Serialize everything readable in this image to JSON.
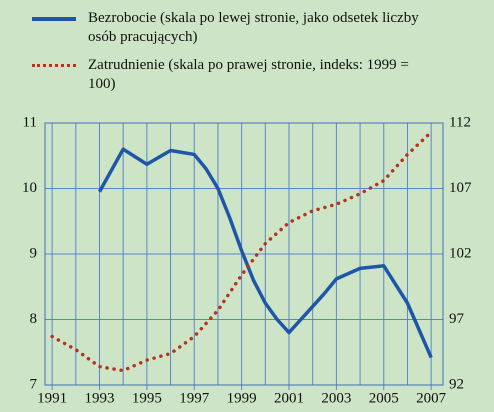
{
  "chart_data": {
    "type": "line",
    "series": [
      {
        "name": "Bezrobocie (skala po lewej stronie, jako odsetek liczby osób pracujących)",
        "color": "#1f56a8",
        "style": "solid",
        "axis": "y",
        "x": [
          1993,
          1994,
          1995,
          1996,
          1997,
          1997.5,
          1998,
          1998.5,
          1999,
          1999.5,
          2000,
          2000.5,
          2001,
          2001.5,
          2002,
          2002.5,
          2003,
          2004,
          2005,
          2006,
          2007
        ],
        "values": [
          9.95,
          10.6,
          10.37,
          10.58,
          10.52,
          10.3,
          10.0,
          9.55,
          9.05,
          8.6,
          8.25,
          8.0,
          7.8,
          8.0,
          8.2,
          8.4,
          8.62,
          8.78,
          8.82,
          8.25,
          7.42
        ]
      },
      {
        "name": "Zatrudnienie (skala po prawej stronie, indeks: 1999 = 100)",
        "color": "#b5331f",
        "style": "dotted",
        "axis": "y2",
        "x": [
          1991,
          1992,
          1993,
          1994,
          1995,
          1996,
          1997,
          1998,
          1999,
          2000,
          2001,
          2002,
          2003,
          2004,
          2005,
          2006,
          2007
        ],
        "values": [
          95.7,
          94.7,
          93.4,
          93.1,
          93.9,
          94.4,
          95.7,
          97.7,
          100.4,
          102.8,
          104.4,
          105.3,
          105.8,
          106.6,
          107.6,
          109.6,
          111.3
        ]
      }
    ],
    "xlim": [
      1990.7,
      2007.5
    ],
    "xticks": [
      1991,
      1993,
      1995,
      1997,
      1999,
      2001,
      2003,
      2005,
      2007
    ],
    "x_minor_ticks": [
      1992,
      1994,
      1996,
      1998,
      2000,
      2002,
      2004,
      2006
    ],
    "ylim": [
      7,
      11
    ],
    "yticks": [
      7,
      8,
      9,
      10,
      11
    ],
    "y2lim": [
      92,
      112
    ],
    "y2ticks": [
      92,
      97,
      102,
      107,
      112
    ],
    "grid": true
  }
}
